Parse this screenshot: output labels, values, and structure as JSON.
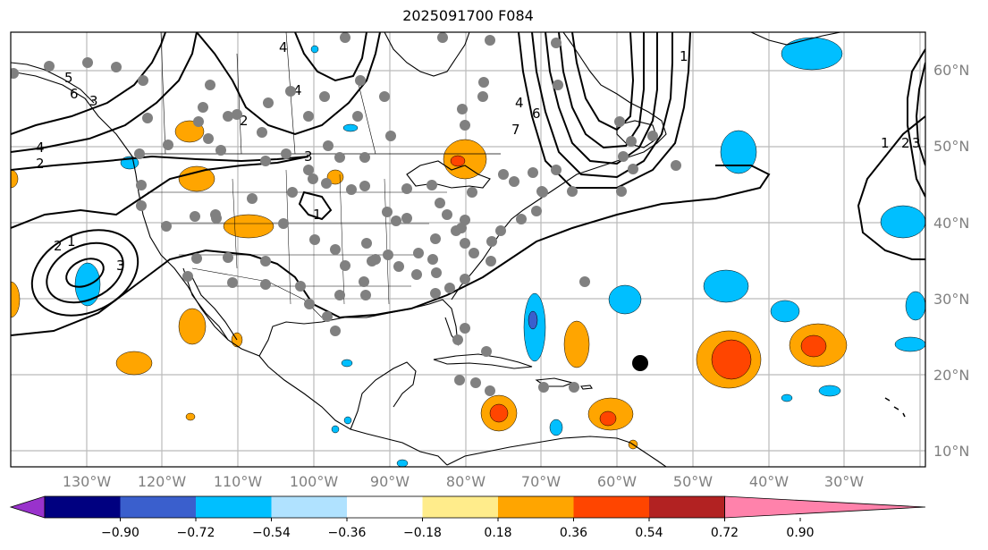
{
  "title": "2025091700 F084",
  "lat_labels": [
    "60°N",
    "50°N",
    "40°N",
    "30°N",
    "20°N",
    "10°N"
  ],
  "lon_labels": [
    "130°W",
    "120°W",
    "110°W",
    "100°W",
    "90°W",
    "80°W",
    "70°W",
    "60°W",
    "50°W",
    "40°W",
    "30°W"
  ],
  "colorbar": {
    "colors": [
      "#9932cc",
      "#000080",
      "#3a5fcd",
      "#00bfff",
      "#b0e2ff",
      "#ffffff",
      "#ffec8b",
      "#ffa500",
      "#ff4500",
      "#b22222",
      "#ff82ab"
    ],
    "tick_labels": [
      "−0.90",
      "−0.72",
      "−0.54",
      "−0.36",
      "−0.18",
      "0.18",
      "0.36",
      "0.54",
      "0.72",
      "0.90"
    ]
  },
  "contour_labels": [
    "1",
    "2",
    "3",
    "4",
    "5",
    "6",
    "7",
    "1",
    "2",
    "3",
    "1",
    "2",
    "3",
    "1",
    "2",
    "3",
    "4",
    "5",
    "4",
    "3",
    "2",
    "1",
    "3"
  ],
  "marker_color": "#808080",
  "storm_marker_color": "#000000"
}
